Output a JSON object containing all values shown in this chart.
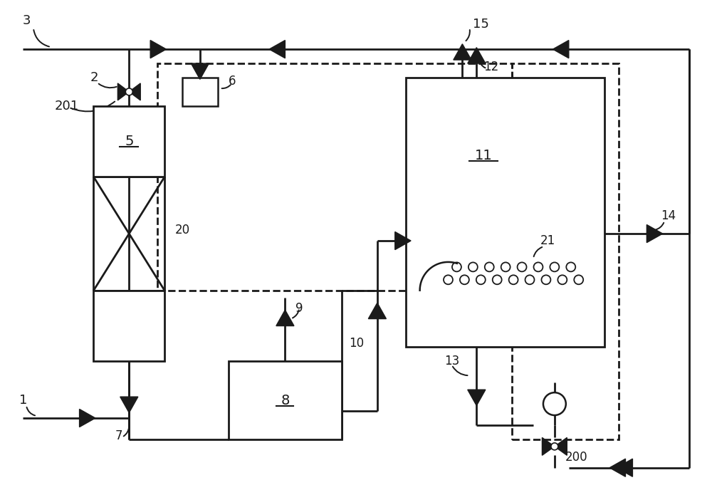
{
  "bg_color": "#ffffff",
  "line_color": "#1a1a1a",
  "fig_width": 10.0,
  "fig_height": 6.88,
  "dpi": 100
}
